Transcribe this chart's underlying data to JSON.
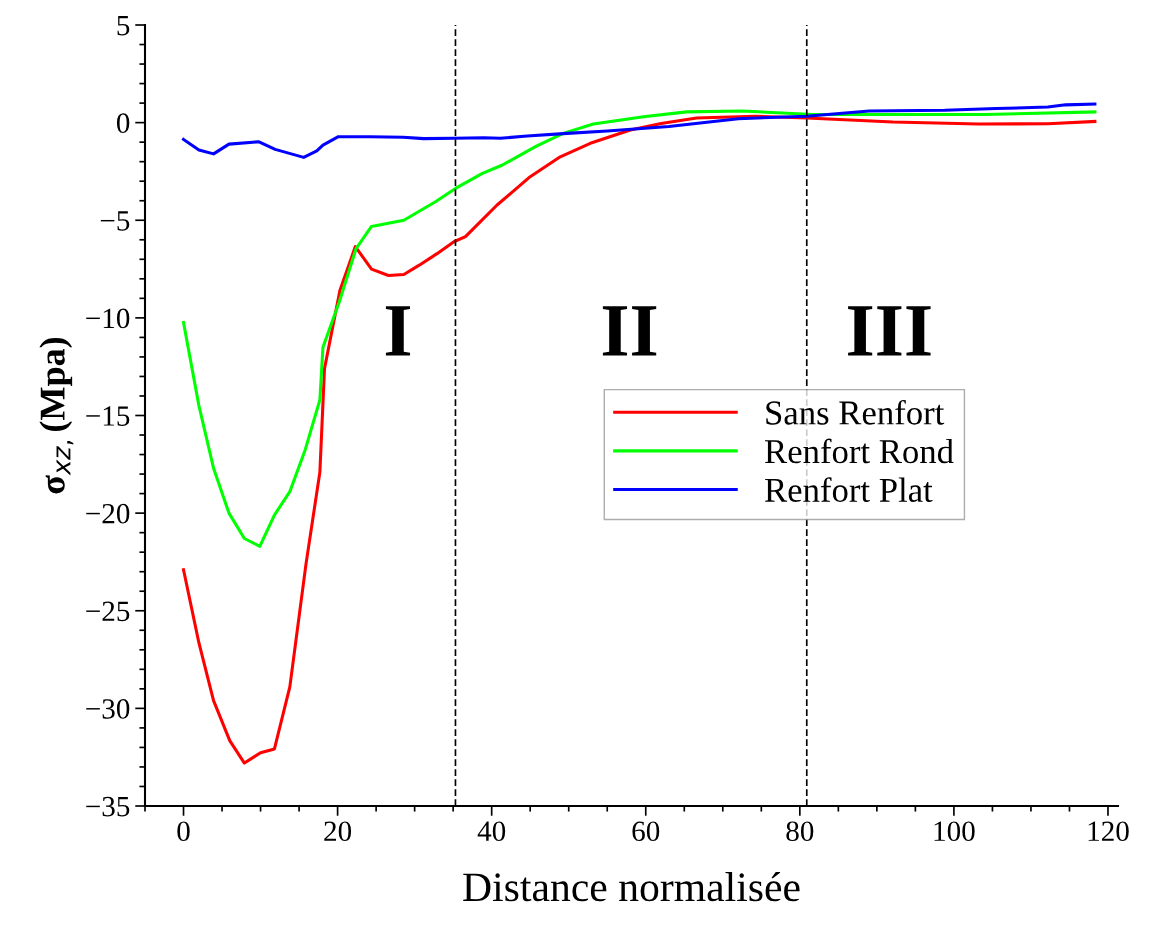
{
  "chart_data": {
    "type": "line",
    "xlabel": "Distance normalisée",
    "ylabel": "σ$_{xz,}$(Mpa)",
    "xlim": [
      -5,
      121.3
    ],
    "ylim": [
      -35,
      5
    ],
    "xticks": [
      0,
      20,
      40,
      60,
      80,
      100,
      120
    ],
    "yticks": [
      5,
      0,
      -5,
      -10,
      -15,
      -20,
      -25,
      -30,
      -35
    ],
    "grid": false,
    "legend": "center right",
    "marker": "none",
    "line_style": "solid",
    "series": [
      {
        "name": "Sans Renfort",
        "color": "#ff0000",
        "x": [
          0,
          2,
          3.9,
          6.0,
          7.9,
          10.0,
          11.8,
          13.8,
          15.9,
          17.7,
          18.3,
          20.3,
          22.3,
          24.4,
          26.6,
          28.6,
          30.6,
          32.9,
          35.1,
          36.6,
          40.7,
          45.0,
          48.9,
          52.8,
          58.0,
          62.0,
          66.6,
          74.2,
          80.9,
          92.1,
          103.2,
          112.2,
          118.3
        ],
        "values": [
          -22.9,
          -26.65,
          -29.6,
          -31.65,
          -32.8,
          -32.27,
          -32.08,
          -28.9,
          -22.6,
          -17.9,
          -12.6,
          -8.6,
          -6.35,
          -7.5,
          -7.83,
          -7.78,
          -7.3,
          -6.71,
          -6.1,
          -5.84,
          -4.22,
          -2.77,
          -1.75,
          -1.06,
          -0.38,
          -0.05,
          0.24,
          0.33,
          0.24,
          0.03,
          -0.07,
          -0.06,
          0.06
        ]
      },
      {
        "name": "Renfort Rond",
        "color": "#00ff00",
        "x": [
          0,
          2,
          3.9,
          5.9,
          7.9,
          9.9,
          11.8,
          13.8,
          15.8,
          17.7,
          18.1,
          20.2,
          22.4,
          24.4,
          28.6,
          32.7,
          35.3,
          38.8,
          41.4,
          45.8,
          49.3,
          53.2,
          59.7,
          65.3,
          72.5,
          81.6,
          90.6,
          104.0,
          118.3
        ],
        "values": [
          -10.24,
          -14.5,
          -17.7,
          -20.0,
          -21.3,
          -21.7,
          -20.1,
          -18.9,
          -16.75,
          -14.2,
          -11.5,
          -9.2,
          -6.45,
          -5.32,
          -5.0,
          -4.05,
          -3.37,
          -2.6,
          -2.17,
          -1.2,
          -0.55,
          -0.07,
          0.3,
          0.55,
          0.6,
          0.42,
          0.42,
          0.42,
          0.55
        ]
      },
      {
        "name": "Renfort Plat",
        "color": "#0000ff",
        "x": [
          0,
          2,
          3.9,
          5.9,
          9.8,
          11.9,
          15.6,
          17.3,
          18.1,
          20.1,
          24.2,
          28.5,
          31.2,
          35.1,
          39.0,
          41.1,
          44.6,
          49.8,
          55.0,
          63.0,
          72.0,
          80.9,
          89.0,
          98.8,
          105.5,
          112.2,
          114.5,
          118.3
        ],
        "values": [
          -0.86,
          -1.4,
          -1.6,
          -1.1,
          -0.98,
          -1.37,
          -1.78,
          -1.45,
          -1.15,
          -0.72,
          -0.72,
          -0.75,
          -0.82,
          -0.8,
          -0.77,
          -0.8,
          -0.69,
          -0.55,
          -0.43,
          -0.2,
          0.2,
          0.33,
          0.6,
          0.63,
          0.72,
          0.8,
          0.91,
          0.95
        ]
      }
    ],
    "ref_lines": [
      {
        "axis": "x",
        "value": 35.3,
        "color": "#000000",
        "line_style": "dashed"
      },
      {
        "axis": "x",
        "value": 80.9,
        "color": "#000000",
        "line_style": "dashed"
      }
    ],
    "annotations": [
      "I",
      "II",
      "III"
    ]
  }
}
